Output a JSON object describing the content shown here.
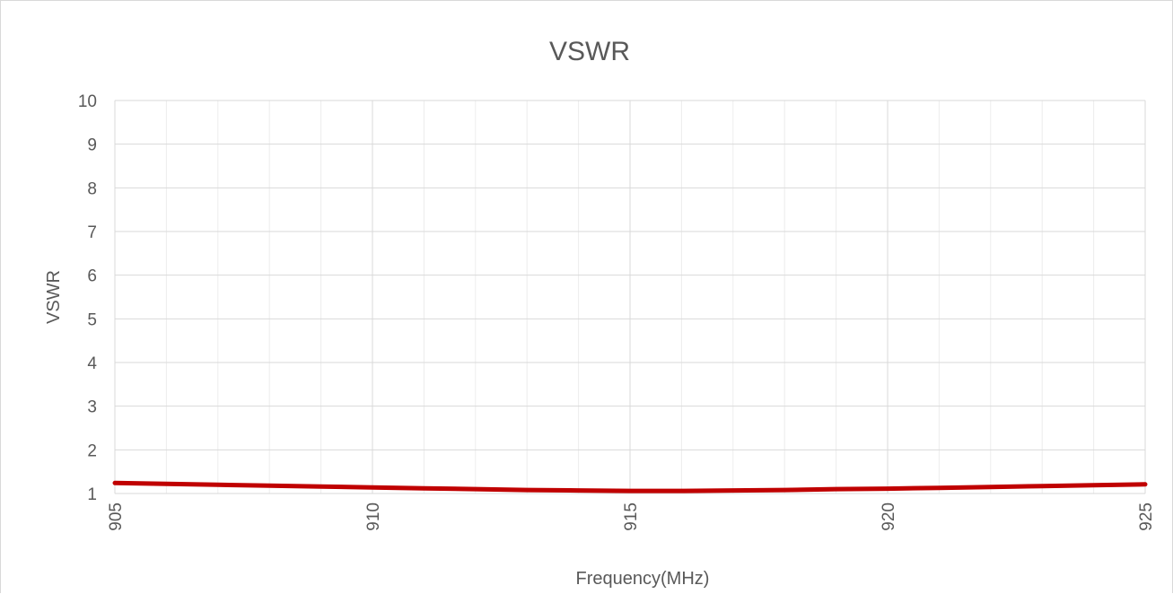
{
  "chart_data": {
    "type": "line",
    "title": "VSWR",
    "xlabel": "Frequency(MHz)",
    "ylabel": "VSWR",
    "xlim": [
      905,
      925
    ],
    "ylim": [
      1,
      10
    ],
    "x_ticks": [
      905,
      910,
      915,
      920,
      925
    ],
    "y_ticks": [
      1,
      2,
      3,
      4,
      5,
      6,
      7,
      8,
      9,
      10
    ],
    "grid": true,
    "legend": "none",
    "series": [
      {
        "color": "#c00000",
        "x": [
          905,
          906,
          907,
          908,
          909,
          910,
          911,
          912,
          913,
          914,
          915,
          915.5,
          916,
          917,
          918,
          919,
          920,
          921,
          922,
          923,
          924,
          925
        ],
        "y": [
          1.24,
          1.22,
          1.2,
          1.18,
          1.16,
          1.14,
          1.12,
          1.1,
          1.08,
          1.07,
          1.06,
          1.06,
          1.06,
          1.07,
          1.08,
          1.1,
          1.11,
          1.13,
          1.15,
          1.17,
          1.19,
          1.21
        ]
      }
    ]
  }
}
